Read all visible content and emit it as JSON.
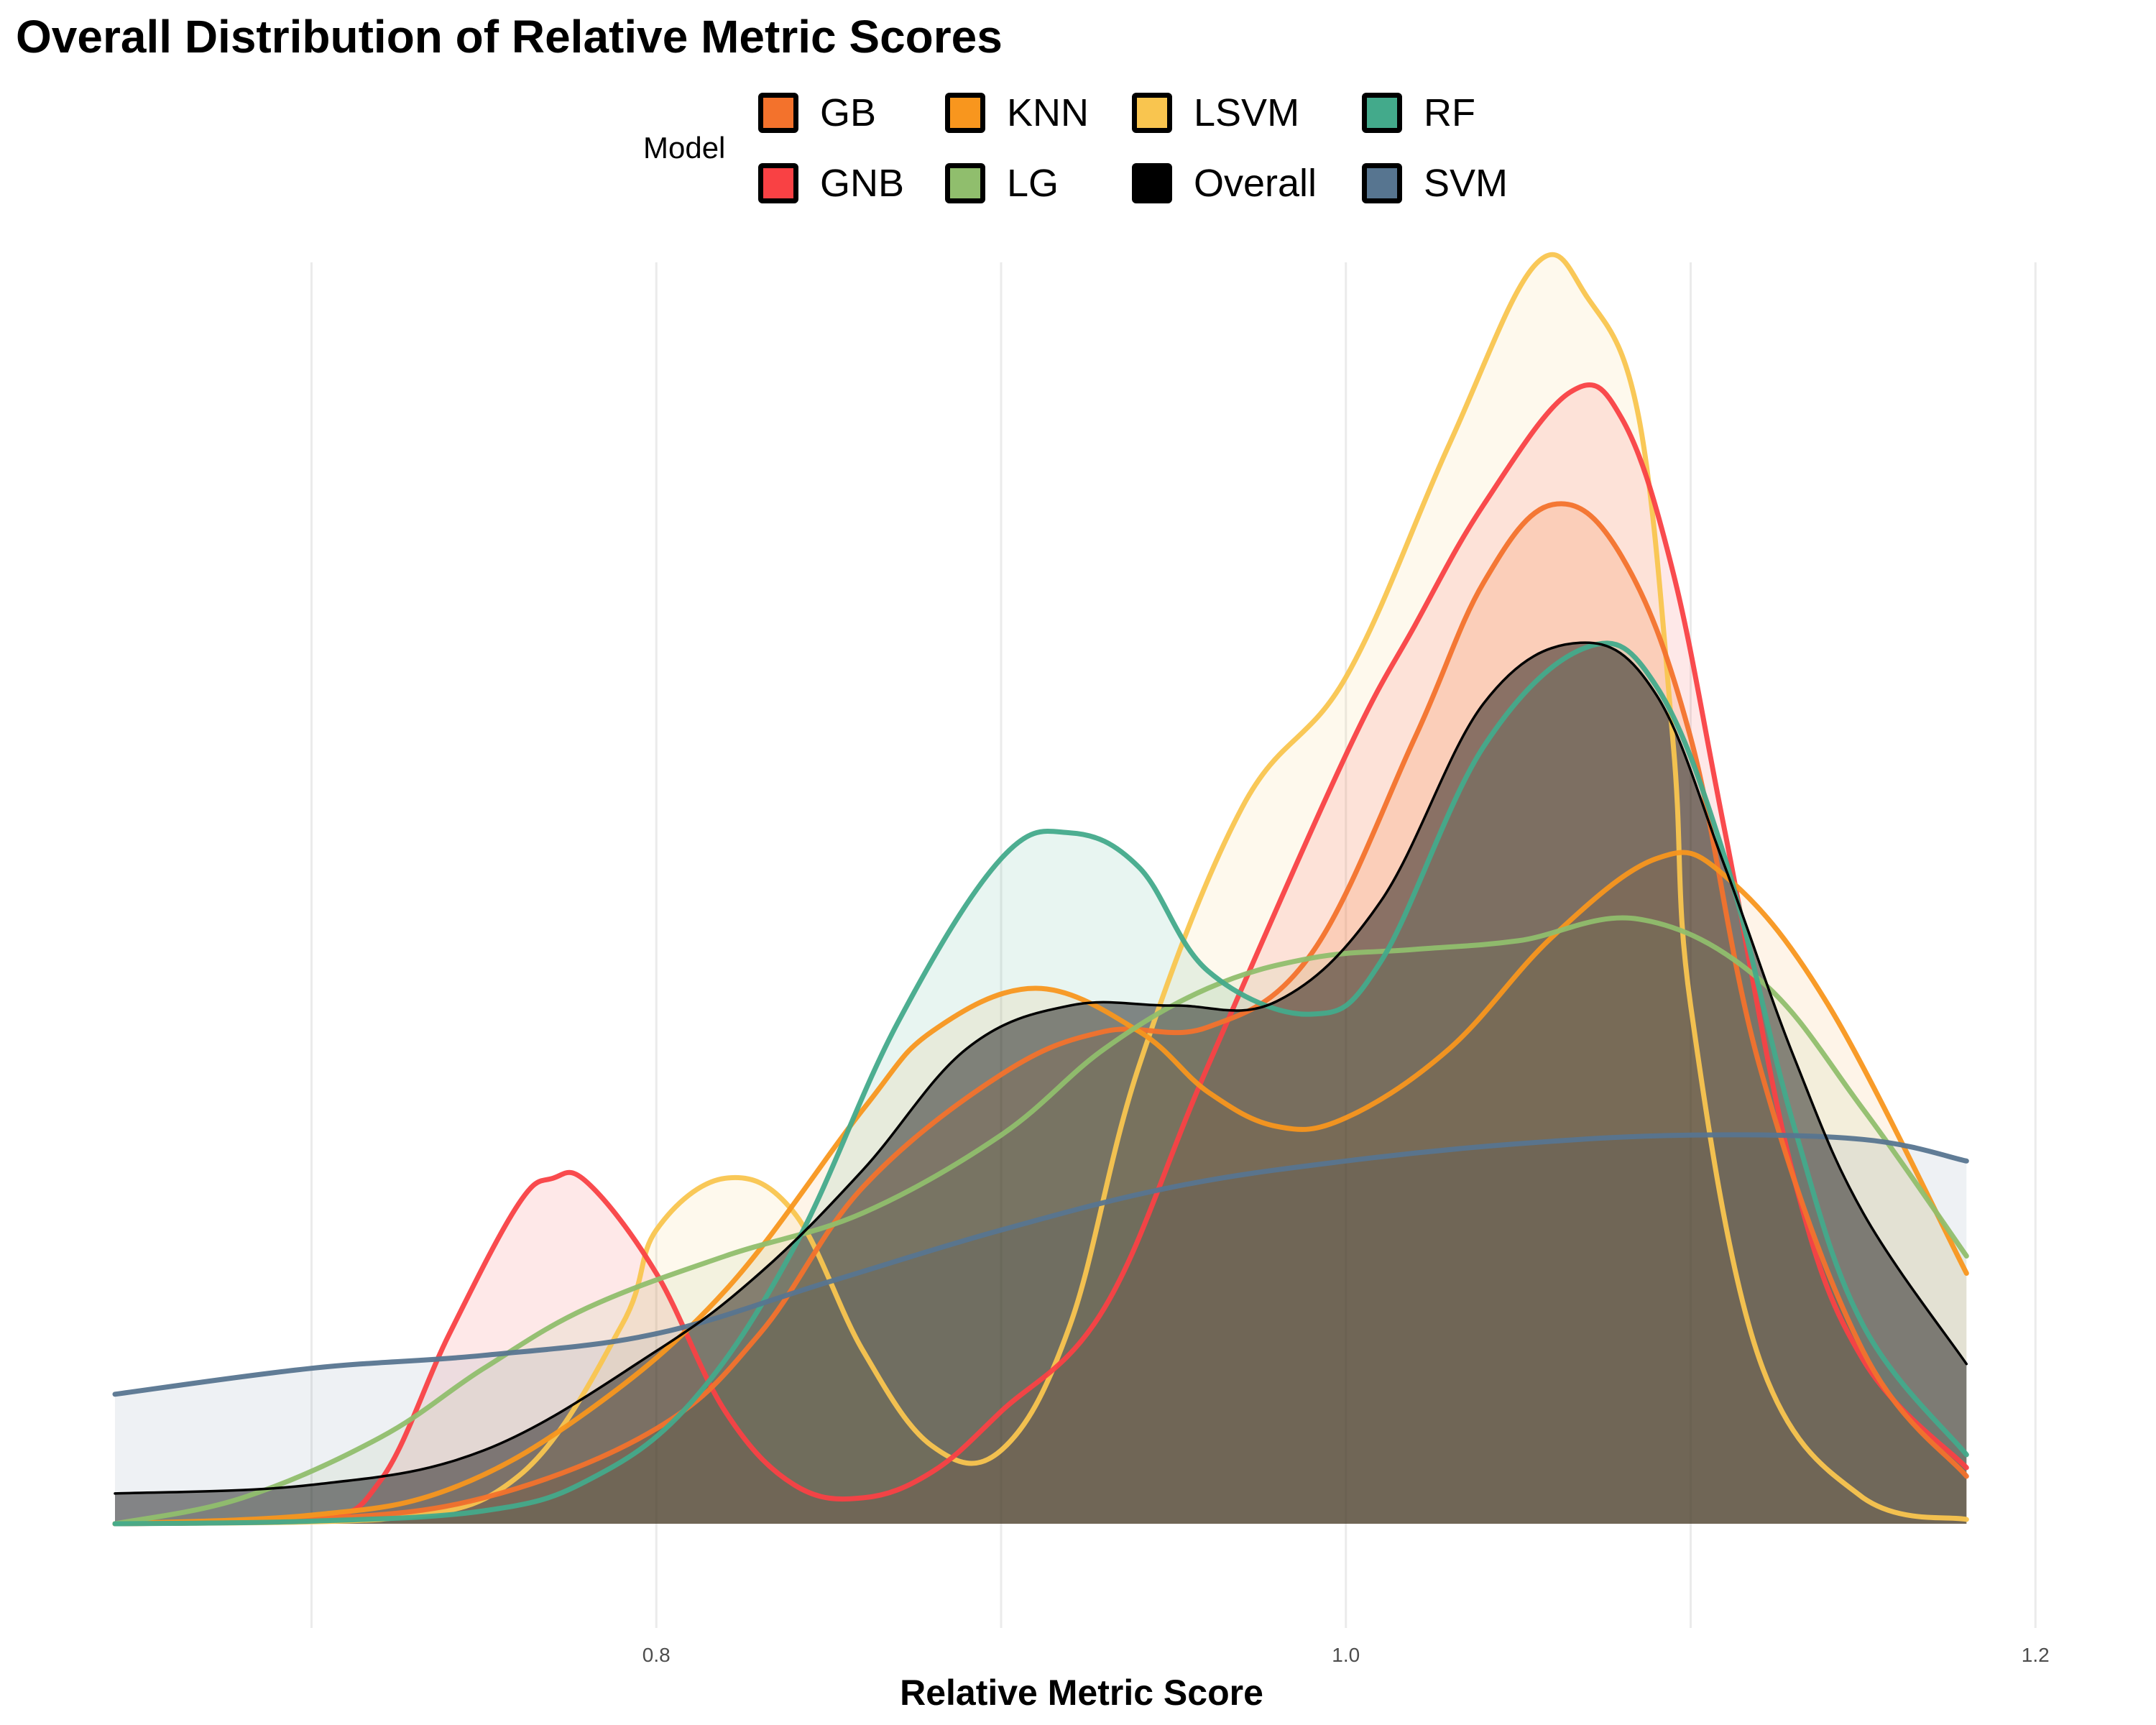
{
  "chart_data": {
    "type": "area",
    "title": "Overall Distribution of Relative Metric Scores",
    "xlabel": "Relative Metric Score",
    "ylabel": "",
    "xlim": [
      0.643,
      1.18
    ],
    "ylim": [
      0,
      15
    ],
    "x_ticks": [
      0.8,
      1.0,
      1.2
    ],
    "x_tick_labels": [
      "0.8",
      "1.0",
      "1.2"
    ],
    "grid": "vertical major and minor lines",
    "legend": {
      "title": "Model",
      "placement": "top",
      "entries": [
        "GB",
        "KNN",
        "LSVM",
        "RF",
        "GNB",
        "LG",
        "Overall",
        "SVM"
      ]
    },
    "series": [
      {
        "name": "LSVM",
        "color": "#F9C54F",
        "peak_x": 1.055,
        "peak_density": 14.58,
        "points": [
          [
            0.643,
            0
          ],
          [
            0.72,
            0.05
          ],
          [
            0.76,
            0.55
          ],
          [
            0.79,
            2.3
          ],
          [
            0.8,
            3.4
          ],
          [
            0.82,
            4.0
          ],
          [
            0.84,
            3.6
          ],
          [
            0.86,
            2.0
          ],
          [
            0.88,
            0.9
          ],
          [
            0.9,
            0.85
          ],
          [
            0.92,
            2.3
          ],
          [
            0.94,
            5.3
          ],
          [
            0.97,
            8.3
          ],
          [
            1.0,
            9.8
          ],
          [
            1.03,
            12.5
          ],
          [
            1.055,
            14.58
          ],
          [
            1.07,
            14.2
          ],
          [
            1.085,
            12.8
          ],
          [
            1.095,
            9.0
          ],
          [
            1.1,
            6.0
          ],
          [
            1.12,
            1.9
          ],
          [
            1.15,
            0.3
          ],
          [
            1.18,
            0.05
          ]
        ]
      },
      {
        "name": "GNB",
        "color": "#F94144",
        "peak_x": 1.065,
        "peak_density": 13.1,
        "points": [
          [
            0.643,
            0
          ],
          [
            0.7,
            0.05
          ],
          [
            0.72,
            0.5
          ],
          [
            0.74,
            2.2
          ],
          [
            0.76,
            3.7
          ],
          [
            0.77,
            4.0
          ],
          [
            0.78,
            3.95
          ],
          [
            0.8,
            2.9
          ],
          [
            0.82,
            1.3
          ],
          [
            0.84,
            0.45
          ],
          [
            0.86,
            0.3
          ],
          [
            0.88,
            0.6
          ],
          [
            0.9,
            1.3
          ],
          [
            0.93,
            2.5
          ],
          [
            0.96,
            5.3
          ],
          [
            1.0,
            8.9
          ],
          [
            1.02,
            10.4
          ],
          [
            1.04,
            11.8
          ],
          [
            1.065,
            13.1
          ],
          [
            1.08,
            12.8
          ],
          [
            1.095,
            11.0
          ],
          [
            1.11,
            8.0
          ],
          [
            1.13,
            4.0
          ],
          [
            1.15,
            1.9
          ],
          [
            1.18,
            0.65
          ]
        ]
      },
      {
        "name": "GB",
        "color": "#F3722C",
        "peak_x": 1.06,
        "peak_density": 11.8,
        "points": [
          [
            0.643,
            0
          ],
          [
            0.7,
            0.05
          ],
          [
            0.75,
            0.3
          ],
          [
            0.8,
            1.1
          ],
          [
            0.83,
            2.2
          ],
          [
            0.86,
            3.9
          ],
          [
            0.9,
            5.2
          ],
          [
            0.93,
            5.7
          ],
          [
            0.96,
            5.75
          ],
          [
            0.99,
            6.6
          ],
          [
            1.02,
            9.1
          ],
          [
            1.04,
            10.9
          ],
          [
            1.06,
            11.8
          ],
          [
            1.08,
            11.2
          ],
          [
            1.1,
            9.1
          ],
          [
            1.12,
            5.3
          ],
          [
            1.15,
            2.0
          ],
          [
            1.18,
            0.55
          ]
        ]
      },
      {
        "name": "KNN",
        "color": "#F8961E",
        "peak_x": 1.09,
        "peak_density": 7.7,
        "points": [
          [
            0.643,
            0
          ],
          [
            0.7,
            0.1
          ],
          [
            0.74,
            0.4
          ],
          [
            0.78,
            1.3
          ],
          [
            0.82,
            2.7
          ],
          [
            0.86,
            4.8
          ],
          [
            0.88,
            5.7
          ],
          [
            0.91,
            6.2
          ],
          [
            0.94,
            5.7
          ],
          [
            0.96,
            5.0
          ],
          [
            0.98,
            4.6
          ],
          [
            1.0,
            4.7
          ],
          [
            1.03,
            5.5
          ],
          [
            1.06,
            6.8
          ],
          [
            1.09,
            7.7
          ],
          [
            1.11,
            7.5
          ],
          [
            1.14,
            6.0
          ],
          [
            1.18,
            2.9
          ]
        ]
      },
      {
        "name": "LG",
        "color": "#90BE6D",
        "peak_x": 1.085,
        "peak_density": 7.0,
        "points": [
          [
            0.643,
            0
          ],
          [
            0.68,
            0.3
          ],
          [
            0.72,
            1.0
          ],
          [
            0.75,
            1.8
          ],
          [
            0.78,
            2.5
          ],
          [
            0.82,
            3.1
          ],
          [
            0.86,
            3.6
          ],
          [
            0.9,
            4.5
          ],
          [
            0.93,
            5.5
          ],
          [
            0.96,
            6.2
          ],
          [
            0.99,
            6.55
          ],
          [
            1.02,
            6.65
          ],
          [
            1.05,
            6.75
          ],
          [
            1.085,
            7.0
          ],
          [
            1.12,
            6.3
          ],
          [
            1.15,
            4.8
          ],
          [
            1.18,
            3.1
          ]
        ]
      },
      {
        "name": "RF",
        "color": "#43AA8B",
        "peak_x": 1.07,
        "peak_density": 10.15,
        "points": [
          [
            0.643,
            0
          ],
          [
            0.7,
            0.03
          ],
          [
            0.75,
            0.15
          ],
          [
            0.78,
            0.5
          ],
          [
            0.81,
            1.4
          ],
          [
            0.84,
            3.2
          ],
          [
            0.87,
            5.8
          ],
          [
            0.9,
            7.7
          ],
          [
            0.92,
            8.0
          ],
          [
            0.94,
            7.6
          ],
          [
            0.96,
            6.4
          ],
          [
            0.99,
            5.9
          ],
          [
            1.01,
            6.5
          ],
          [
            1.04,
            9.0
          ],
          [
            1.07,
            10.15
          ],
          [
            1.09,
            9.7
          ],
          [
            1.11,
            7.7
          ],
          [
            1.13,
            4.6
          ],
          [
            1.15,
            2.3
          ],
          [
            1.18,
            0.8
          ]
        ]
      },
      {
        "name": "SVM",
        "color": "#577590",
        "peak_x": 1.1,
        "peak_density": 4.5,
        "points": [
          [
            0.643,
            1.5
          ],
          [
            0.7,
            1.8
          ],
          [
            0.75,
            1.95
          ],
          [
            0.8,
            2.2
          ],
          [
            0.85,
            2.8
          ],
          [
            0.9,
            3.4
          ],
          [
            0.95,
            3.9
          ],
          [
            1.0,
            4.2
          ],
          [
            1.05,
            4.4
          ],
          [
            1.1,
            4.5
          ],
          [
            1.15,
            4.45
          ],
          [
            1.18,
            4.2
          ]
        ]
      },
      {
        "name": "Overall",
        "color": "#000000",
        "peak_x": 1.068,
        "peak_density": 10.2,
        "points": [
          [
            0.643,
            0.35
          ],
          [
            0.7,
            0.45
          ],
          [
            0.75,
            0.85
          ],
          [
            0.8,
            2.0
          ],
          [
            0.83,
            2.9
          ],
          [
            0.86,
            4.1
          ],
          [
            0.89,
            5.5
          ],
          [
            0.92,
            6.0
          ],
          [
            0.95,
            6.0
          ],
          [
            0.98,
            6.05
          ],
          [
            1.01,
            7.2
          ],
          [
            1.04,
            9.5
          ],
          [
            1.068,
            10.2
          ],
          [
            1.09,
            9.6
          ],
          [
            1.11,
            7.6
          ],
          [
            1.13,
            5.4
          ],
          [
            1.15,
            3.6
          ],
          [
            1.18,
            1.85
          ]
        ]
      }
    ]
  }
}
